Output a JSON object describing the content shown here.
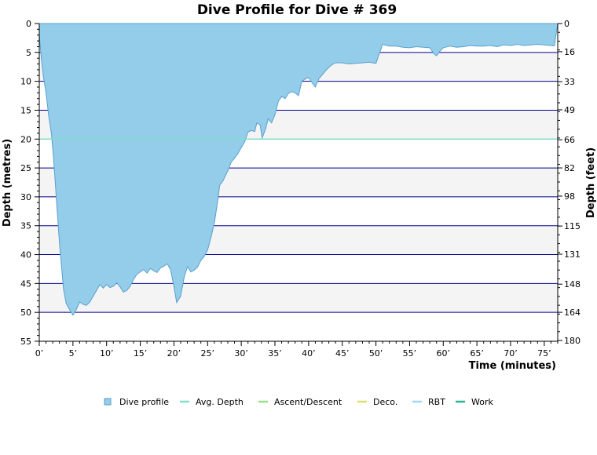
{
  "chart_data": {
    "type": "area",
    "title": "Dive Profile for Dive # 369",
    "xlabel": "Time (minutes)",
    "ylabel": "Depth (metres)",
    "ylabel_right": "Depth (feet)",
    "xlim": [
      0,
      77
    ],
    "ylim": [
      0,
      55
    ],
    "y_inverted": true,
    "x_ticks": [
      0,
      5,
      10,
      15,
      20,
      25,
      30,
      35,
      40,
      45,
      50,
      55,
      60,
      65,
      70,
      75
    ],
    "x_tick_labels": [
      "0’",
      "5’",
      "10’",
      "15’",
      "20’",
      "25’",
      "30’",
      "35’",
      "40’",
      "45’",
      "50’",
      "55’",
      "60’",
      "65’",
      "70’",
      "75’"
    ],
    "y_ticks": [
      0,
      5,
      10,
      15,
      20,
      25,
      30,
      35,
      40,
      45,
      50,
      55
    ],
    "y_tick_labels": [
      "0",
      "5",
      "10",
      "15",
      "20",
      "25",
      "30",
      "35",
      "40",
      "45",
      "50",
      "55"
    ],
    "right_ticks": [
      0,
      16,
      33,
      49,
      66,
      82,
      98,
      115,
      131,
      148,
      164,
      180
    ],
    "right_tick_labels": [
      "0",
      "16",
      "33",
      "49",
      "66",
      "82",
      "98",
      "115",
      "131",
      "148",
      "164",
      "180"
    ],
    "feet_per_metre": 3.2808,
    "grid": true,
    "legend_position": "bottom",
    "avg_depth": 20,
    "series": [
      {
        "name": "Dive profile",
        "color": "#94cde9",
        "edge_color": "#5a9fd0",
        "points": [
          [
            0,
            2
          ],
          [
            0.3,
            6
          ],
          [
            0.6,
            9
          ],
          [
            1.0,
            12
          ],
          [
            1.4,
            16
          ],
          [
            1.8,
            19
          ],
          [
            2.1,
            23
          ],
          [
            2.4,
            28
          ],
          [
            2.7,
            33
          ],
          [
            3.0,
            38
          ],
          [
            3.3,
            42
          ],
          [
            3.6,
            46
          ],
          [
            4.0,
            48.5
          ],
          [
            4.5,
            49.5
          ],
          [
            5.0,
            50.5
          ],
          [
            5.5,
            49.5
          ],
          [
            6.0,
            48.2
          ],
          [
            6.5,
            48.6
          ],
          [
            7.0,
            48.8
          ],
          [
            7.5,
            48.2
          ],
          [
            8.0,
            47.2
          ],
          [
            8.5,
            46.2
          ],
          [
            9.0,
            45.2
          ],
          [
            9.5,
            45.8
          ],
          [
            10.0,
            45.2
          ],
          [
            10.5,
            45.7
          ],
          [
            11.0,
            45.5
          ],
          [
            11.5,
            44.9
          ],
          [
            12.0,
            45.6
          ],
          [
            12.5,
            46.5
          ],
          [
            13.0,
            46.2
          ],
          [
            13.5,
            45.5
          ],
          [
            14.0,
            44.3
          ],
          [
            14.5,
            43.4
          ],
          [
            15.0,
            43.0
          ],
          [
            15.5,
            42.6
          ],
          [
            16.0,
            43.2
          ],
          [
            16.5,
            42.4
          ],
          [
            17.0,
            42.8
          ],
          [
            17.5,
            43.1
          ],
          [
            18.0,
            42.3
          ],
          [
            18.5,
            42.0
          ],
          [
            19.0,
            41.6
          ],
          [
            19.5,
            42.6
          ],
          [
            20.0,
            45.5
          ],
          [
            20.4,
            48.3
          ],
          [
            21.0,
            47.2
          ],
          [
            21.5,
            44.0
          ],
          [
            22.0,
            42.1
          ],
          [
            22.5,
            43.0
          ],
          [
            23.0,
            42.7
          ],
          [
            23.5,
            42.2
          ],
          [
            24.0,
            41.0
          ],
          [
            24.5,
            40.3
          ],
          [
            25.0,
            39.2
          ],
          [
            25.5,
            37.0
          ],
          [
            26.0,
            34.5
          ],
          [
            26.4,
            31.5
          ],
          [
            26.8,
            28.0
          ],
          [
            27.3,
            27.2
          ],
          [
            28.0,
            25.5
          ],
          [
            28.5,
            24.0
          ],
          [
            29.0,
            23.3
          ],
          [
            29.5,
            22.5
          ],
          [
            30.0,
            21.5
          ],
          [
            30.5,
            20.5
          ],
          [
            31.0,
            18.8
          ],
          [
            31.5,
            18.5
          ],
          [
            32.0,
            18.7
          ],
          [
            32.3,
            17.2
          ],
          [
            32.8,
            17.5
          ],
          [
            33.1,
            19.8
          ],
          [
            33.6,
            18.3
          ],
          [
            34.0,
            16.5
          ],
          [
            34.5,
            17.2
          ],
          [
            35.0,
            15.8
          ],
          [
            35.5,
            13.5
          ],
          [
            36.0,
            12.6
          ],
          [
            36.5,
            13.0
          ],
          [
            37.0,
            12.1
          ],
          [
            37.5,
            11.8
          ],
          [
            38.0,
            12.0
          ],
          [
            38.5,
            12.5
          ],
          [
            39.0,
            10.0
          ],
          [
            39.5,
            9.6
          ],
          [
            40.0,
            9.3
          ],
          [
            40.5,
            10.2
          ],
          [
            41.0,
            11.0
          ],
          [
            41.5,
            9.6
          ],
          [
            42.0,
            8.9
          ],
          [
            42.5,
            8.2
          ],
          [
            43.0,
            7.6
          ],
          [
            43.5,
            7.1
          ],
          [
            44.0,
            6.8
          ],
          [
            45.0,
            6.8
          ],
          [
            46.0,
            7.0
          ],
          [
            47.0,
            6.9
          ],
          [
            48.0,
            6.8
          ],
          [
            49.0,
            6.7
          ],
          [
            50.0,
            6.9
          ],
          [
            50.5,
            5.2
          ],
          [
            51.0,
            3.6
          ],
          [
            52.0,
            3.9
          ],
          [
            53.0,
            3.9
          ],
          [
            54.0,
            4.1
          ],
          [
            55.0,
            4.2
          ],
          [
            56.0,
            4.0
          ],
          [
            57.0,
            4.1
          ],
          [
            58.0,
            4.2
          ],
          [
            58.6,
            5.2
          ],
          [
            59.0,
            5.6
          ],
          [
            59.5,
            4.8
          ],
          [
            60.0,
            4.2
          ],
          [
            61.0,
            3.9
          ],
          [
            62.0,
            4.1
          ],
          [
            63.0,
            4.0
          ],
          [
            64.0,
            3.8
          ],
          [
            65.0,
            3.9
          ],
          [
            66.0,
            3.9
          ],
          [
            67.0,
            3.8
          ],
          [
            68.0,
            4.0
          ],
          [
            69.0,
            3.7
          ],
          [
            70.0,
            3.8
          ],
          [
            71.0,
            3.6
          ],
          [
            72.0,
            3.8
          ],
          [
            73.0,
            3.7
          ],
          [
            74.0,
            3.6
          ],
          [
            75.0,
            3.7
          ],
          [
            76.0,
            3.8
          ],
          [
            76.5,
            3.9
          ],
          [
            77.0,
            0
          ]
        ]
      }
    ],
    "legend": [
      {
        "name": "Dive profile",
        "color": "#94cde9",
        "swatch": "box"
      },
      {
        "name": "Avg. Depth",
        "color": "#7fe0c8",
        "swatch": "line"
      },
      {
        "name": "Ascent/Descent",
        "color": "#99e08a",
        "swatch": "line"
      },
      {
        "name": "Deco.",
        "color": "#d9e06a",
        "swatch": "line"
      },
      {
        "name": "RBT",
        "color": "#9fd8ee",
        "swatch": "line"
      },
      {
        "name": "Work",
        "color": "#2ab592",
        "swatch": "line"
      }
    ],
    "colors": {
      "band_light": "#ffffff",
      "band_dark": "#f4f4f4",
      "grid_line": "#00008b",
      "axis": "#000000",
      "avg_line": "#7fe0c8"
    }
  }
}
